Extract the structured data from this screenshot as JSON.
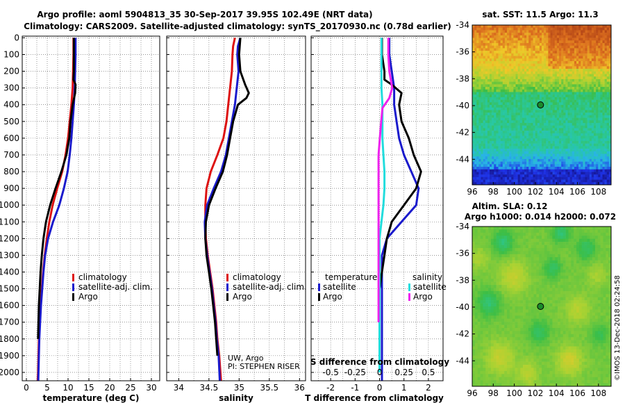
{
  "title_line1": "Argo profile: aoml 5904813_35 30-Sep-2017 39.95S 102.49E (NRT data)",
  "title_line2": "Climatology: CARS2009. Satellite-adjusted climatology: synTS_20170930.nc (0.78d earlier)",
  "depth_ticks": [
    0,
    100,
    200,
    300,
    400,
    500,
    600,
    700,
    800,
    900,
    1000,
    1100,
    1200,
    1300,
    1400,
    1500,
    1600,
    1700,
    1800,
    1900,
    2000
  ],
  "colors": {
    "climatology": "#dd1111",
    "satellite": "#1a1acc",
    "argo": "#000000",
    "s_satellite": "#22dddd",
    "s_argo": "#ee22ee"
  },
  "credits": {
    "line1": "UW, Argo",
    "line2": "PI: STEPHEN RISER"
  },
  "imos_stamp": "©IMOS 13-Dec-2018 02:24:58",
  "chart_data": [
    {
      "type": "line",
      "name": "temperature",
      "xlabel": "temperature (deg C)",
      "ylabel": "depth",
      "xlim": [
        -1,
        32
      ],
      "ylim": [
        2050,
        -10
      ],
      "xticks": [
        0,
        5,
        10,
        15,
        20,
        25,
        30
      ],
      "legend": [
        "climatology",
        "satellite-adj. clim.",
        "Argo"
      ],
      "series": [
        {
          "name": "climatology",
          "color_key": "climatology",
          "x": [
            11.3,
            11.3,
            11.2,
            11.1,
            10.8,
            10.4,
            10.0,
            9.4,
            8.6,
            7.4,
            6.3,
            5.5,
            4.9,
            4.4,
            4.0,
            3.7,
            3.4,
            3.2,
            3.0,
            2.9,
            2.8,
            2.7
          ],
          "y": [
            0,
            100,
            200,
            300,
            400,
            500,
            600,
            700,
            800,
            900,
            1000,
            1100,
            1200,
            1300,
            1400,
            1500,
            1600,
            1700,
            1800,
            1900,
            2000,
            2050
          ]
        },
        {
          "name": "satellite-adj. clim.",
          "color_key": "satellite",
          "x": [
            11.8,
            11.8,
            11.7,
            11.6,
            11.4,
            11.1,
            10.8,
            10.4,
            9.9,
            9.0,
            7.9,
            6.4,
            5.2,
            4.5,
            4.1,
            3.8,
            3.5,
            3.3,
            3.1,
            3.0,
            2.9,
            2.85
          ],
          "y": [
            0,
            100,
            200,
            300,
            400,
            500,
            600,
            700,
            800,
            900,
            1000,
            1100,
            1200,
            1300,
            1400,
            1500,
            1600,
            1700,
            1800,
            1900,
            2000,
            2050
          ]
        },
        {
          "name": "Argo",
          "color_key": "argo",
          "x": [
            11.4,
            11.4,
            11.4,
            11.3,
            11.8,
            11.7,
            11.1,
            10.6,
            10.3,
            9.6,
            8.4,
            7.0,
            5.7,
            4.7,
            4.1,
            3.7,
            3.4,
            3.2,
            3.0,
            2.9,
            2.8
          ],
          "y": [
            0,
            100,
            200,
            250,
            280,
            330,
            400,
            500,
            600,
            700,
            800,
            900,
            1000,
            1100,
            1200,
            1300,
            1400,
            1500,
            1600,
            1700,
            1800
          ]
        }
      ]
    },
    {
      "type": "line",
      "name": "salinity",
      "xlabel": "salinity",
      "ylabel": "depth",
      "xlim": [
        33.8,
        36.1
      ],
      "ylim": [
        2050,
        -10
      ],
      "xticks": [
        34,
        34.5,
        35,
        35.5,
        36
      ],
      "legend": [
        "climatology",
        "satellite-adj. clim.",
        "Argo"
      ],
      "series": [
        {
          "name": "climatology",
          "color_key": "climatology",
          "x": [
            34.93,
            34.9,
            34.89,
            34.88,
            34.85,
            34.82,
            34.79,
            34.74,
            34.64,
            34.53,
            34.46,
            34.44,
            34.44,
            34.45,
            34.48,
            34.52,
            34.56,
            34.59,
            34.62,
            34.64,
            34.67,
            34.7
          ],
          "y": [
            0,
            50,
            100,
            200,
            300,
            400,
            500,
            600,
            700,
            800,
            900,
            1000,
            1100,
            1200,
            1300,
            1400,
            1500,
            1600,
            1700,
            1800,
            1900,
            2050
          ]
        },
        {
          "name": "satellite-adj. clim.",
          "color_key": "satellite",
          "x": [
            35.02,
            34.98,
            34.97,
            34.99,
            34.96,
            34.93,
            34.88,
            34.83,
            34.78,
            34.7,
            34.58,
            34.47,
            34.43,
            34.44,
            34.47,
            34.51,
            34.55,
            34.58,
            34.61,
            34.63,
            34.66,
            34.68
          ],
          "y": [
            0,
            50,
            100,
            200,
            300,
            400,
            500,
            600,
            700,
            800,
            900,
            1000,
            1100,
            1200,
            1300,
            1400,
            1500,
            1600,
            1700,
            1800,
            1900,
            2050
          ]
        },
        {
          "name": "Argo",
          "color_key": "argo",
          "x": [
            35.02,
            35.0,
            35.02,
            35.1,
            35.16,
            35.12,
            34.98,
            34.9,
            34.85,
            34.8,
            34.73,
            34.61,
            34.5,
            34.45,
            34.44,
            34.46,
            34.5,
            34.54,
            34.57,
            34.6,
            34.62,
            34.64
          ],
          "y": [
            0,
            100,
            200,
            280,
            330,
            360,
            400,
            500,
            600,
            700,
            800,
            900,
            1000,
            1100,
            1200,
            1300,
            1400,
            1500,
            1600,
            1700,
            1800,
            1900
          ]
        }
      ]
    },
    {
      "type": "line",
      "name": "difference",
      "xlabel": "T difference from climatology",
      "top_xlabel": "S difference from climatology",
      "ylabel": "depth",
      "xlim": [
        -2.8,
        2.6
      ],
      "ylim": [
        2050,
        -10
      ],
      "xticks": [
        -2,
        -1,
        0,
        1,
        2
      ],
      "top_xticks": [
        -0.5,
        -0.25,
        0,
        0.25,
        0.5
      ],
      "top_xtick_labels": [
        "-0.5",
        "-0.25",
        "0",
        "0.25",
        "0.5"
      ],
      "s_scale": 4,
      "legend_t": {
        "title": "temperature",
        "entries": [
          "satellite",
          "Argo"
        ]
      },
      "legend_s": {
        "title": "salinity",
        "entries": [
          "satellite",
          "Argo"
        ]
      },
      "series": [
        {
          "name": "T satellite",
          "color_key": "satellite",
          "kind": "T",
          "x": [
            0.4,
            0.4,
            0.5,
            0.6,
            0.6,
            0.7,
            0.8,
            1.0,
            1.3,
            1.6,
            1.5,
            0.9,
            0.3,
            0.1,
            0.1,
            0.1,
            0.1,
            0.1,
            0.1,
            0.1,
            0.1,
            0.1
          ],
          "y": [
            0,
            100,
            200,
            300,
            400,
            500,
            600,
            700,
            800,
            900,
            1000,
            1100,
            1200,
            1300,
            1400,
            1500,
            1600,
            1700,
            1800,
            1900,
            2000,
            2050
          ]
        },
        {
          "name": "T Argo",
          "color_key": "argo",
          "kind": "T",
          "x": [
            0.1,
            0.1,
            0.2,
            0.2,
            0.5,
            0.9,
            0.8,
            0.9,
            1.2,
            1.4,
            1.7,
            1.5,
            1.0,
            0.5,
            0.3,
            0.2,
            0.1,
            0.0,
            0.0,
            0.0,
            0.0,
            0.0
          ],
          "y": [
            0,
            100,
            200,
            250,
            280,
            330,
            400,
            500,
            600,
            700,
            800,
            900,
            1000,
            1100,
            1200,
            1300,
            1400,
            1500,
            1600,
            1700,
            1800,
            1900
          ]
        },
        {
          "name": "S satellite",
          "color_key": "s_satellite",
          "kind": "S",
          "x": [
            0.02,
            0.02,
            0.02,
            0.02,
            0.03,
            0.03,
            0.03,
            0.04,
            0.05,
            0.05,
            0.04,
            0.02,
            0.0,
            0.0,
            0.0,
            0.0,
            0.0,
            0.0,
            0.0,
            0.0,
            0.0
          ],
          "y": [
            0,
            100,
            200,
            300,
            400,
            500,
            600,
            700,
            800,
            900,
            1000,
            1100,
            1200,
            1300,
            1400,
            1500,
            1600,
            1700,
            1800,
            1900,
            2000
          ]
        },
        {
          "name": "S Argo",
          "color_key": "s_argo",
          "kind": "S",
          "x": [
            0.09,
            0.09,
            0.1,
            0.13,
            0.1,
            0.03,
            0.01,
            -0.01,
            -0.01,
            -0.01,
            -0.01,
            -0.01,
            -0.01,
            -0.01,
            -0.01,
            -0.01,
            -0.01,
            -0.01
          ],
          "y": [
            0,
            100,
            200,
            300,
            360,
            420,
            550,
            700,
            800,
            900,
            1000,
            1100,
            1200,
            1300,
            1400,
            1500,
            1600,
            1700
          ]
        }
      ]
    },
    {
      "type": "heatmap",
      "name": "sst_map",
      "title": "sat. SST: 11.5 Argo: 11.3",
      "xlim": [
        96,
        109.2
      ],
      "ylim": [
        -45.9,
        -34
      ],
      "xticks": [
        96,
        98,
        100,
        102,
        104,
        106,
        108
      ],
      "yticks": [
        -34,
        -36,
        -38,
        -40,
        -42,
        -44
      ],
      "argo_position": {
        "lon": 102.49,
        "lat": -39.95
      }
    },
    {
      "type": "heatmap",
      "name": "sla_map",
      "title_line1": "Altim. SLA: 0.12",
      "title_line2": "Argo h1000: 0.014 h2000: 0.072",
      "xlim": [
        96,
        109.2
      ],
      "ylim": [
        -45.9,
        -34
      ],
      "xticks": [
        96,
        98,
        100,
        102,
        104,
        106,
        108
      ],
      "yticks": [
        -34,
        -36,
        -38,
        -40,
        -42,
        -44
      ],
      "argo_position": {
        "lon": 102.49,
        "lat": -39.95
      }
    }
  ]
}
